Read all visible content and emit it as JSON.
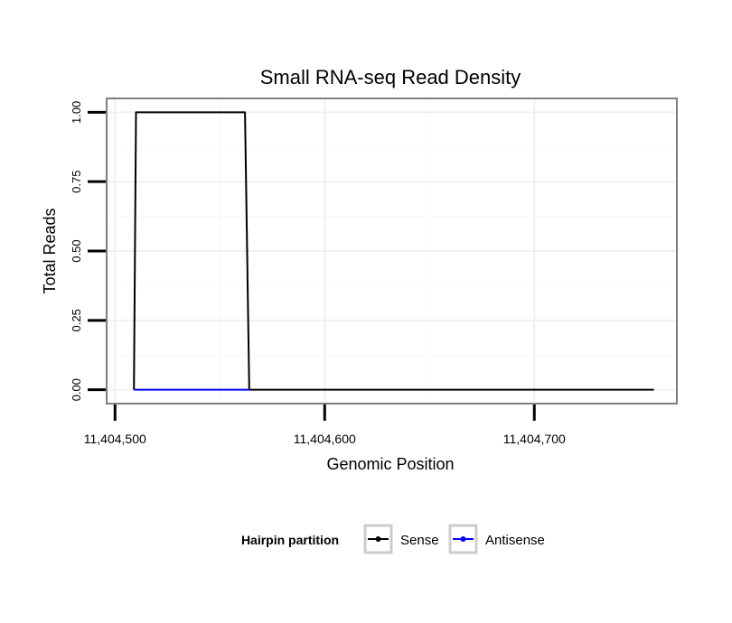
{
  "chart_data": {
    "type": "line",
    "title": "Small RNA-seq Read Density",
    "xlabel": "Genomic Position",
    "ylabel": "Total Reads",
    "xlim": [
      11404496,
      11404768
    ],
    "ylim": [
      -0.05,
      1.05
    ],
    "x_ticks": [
      11404500,
      11404600,
      11404700
    ],
    "x_tick_labels": [
      "11,404,500",
      "11,404,600",
      "11,404,700"
    ],
    "y_ticks": [
      0,
      0.25,
      0.5,
      0.75,
      1.0
    ],
    "y_tick_labels": [
      "0.00",
      "0.25",
      "0.50",
      "0.75",
      "1.00"
    ],
    "grid": true,
    "legend": {
      "title": "Hairpin partition",
      "position": "bottom"
    },
    "series": [
      {
        "name": "Sense",
        "color": "#000000",
        "points": [
          [
            11404509,
            0
          ],
          [
            11404510,
            1
          ],
          [
            11404562,
            1
          ],
          [
            11404564,
            0
          ],
          [
            11404757,
            0
          ]
        ]
      },
      {
        "name": "Antisense",
        "color": "#0000ff",
        "points": [
          [
            11404509,
            0
          ],
          [
            11404564,
            0
          ]
        ]
      }
    ]
  }
}
